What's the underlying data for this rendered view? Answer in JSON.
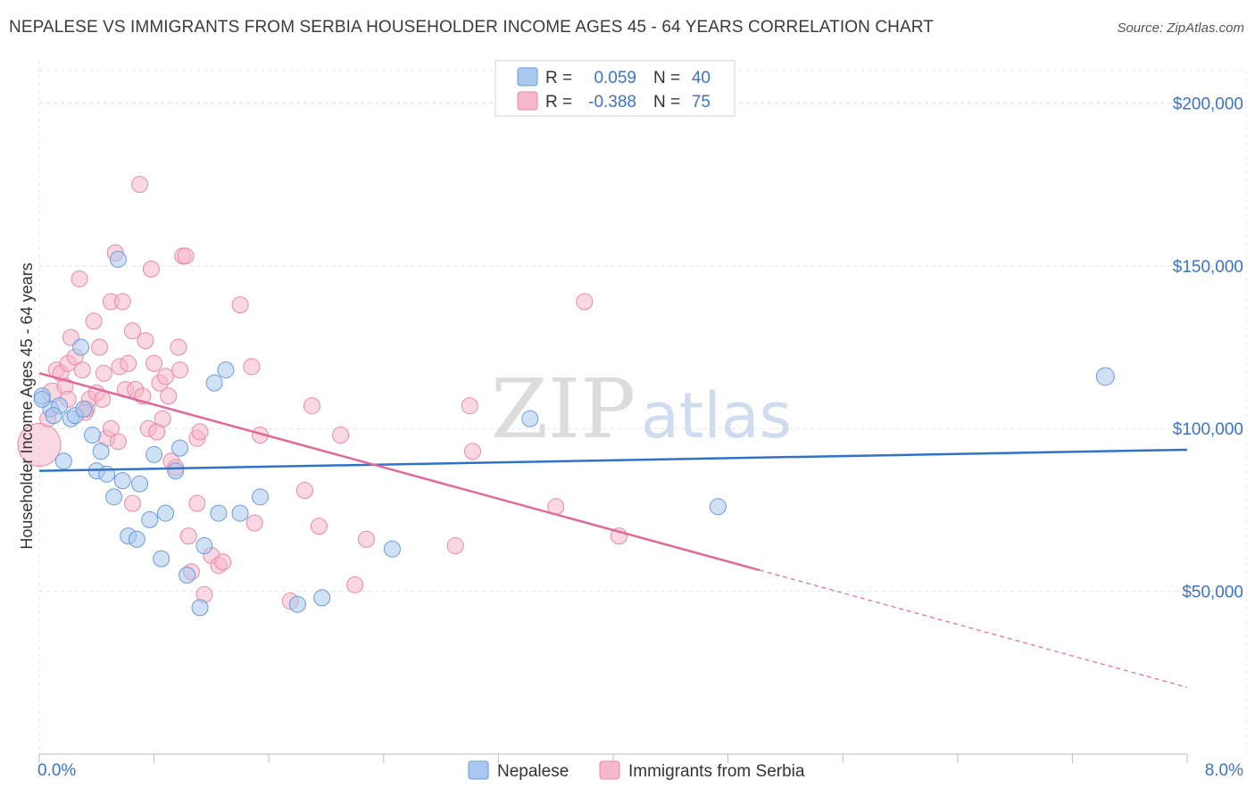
{
  "title": "NEPALESE VS IMMIGRANTS FROM SERBIA HOUSEHOLDER INCOME AGES 45 - 64 YEARS CORRELATION CHART",
  "source": "Source: ZipAtlas.com",
  "watermark": {
    "zip": "ZIP",
    "atlas": "atlas"
  },
  "colors": {
    "nepalese_fill": "#a9c8ef",
    "nepalese_stroke": "#6b9bd8",
    "nepalese_line": "#2f73c9",
    "serbia_fill": "#f5b8cb",
    "serbia_stroke": "#e88aa8",
    "serbia_line": "#e0699a",
    "axis_text": "#3b73c7",
    "grid": "#e2e2e2"
  },
  "legend": {
    "rows": [
      {
        "r_label": "R =",
        "r_value": "0.059",
        "n_label": "N =",
        "n_value": "40"
      },
      {
        "r_label": "R =",
        "r_value": "-0.388",
        "n_label": "N =",
        "n_value": "75"
      }
    ]
  },
  "chart_data": {
    "type": "scatter",
    "title": "NEPALESE VS IMMIGRANTS FROM SERBIA HOUSEHOLDER INCOME AGES 45 - 64 YEARS CORRELATION CHART",
    "xlabel": "",
    "ylabel": "Householder Income Ages 45 - 64 years",
    "xlim": [
      0,
      8
    ],
    "ylim": [
      0,
      210000
    ],
    "x_tick_labels": [
      "0.0%",
      "8.0%"
    ],
    "y_ticks": [
      50000,
      100000,
      150000,
      200000
    ],
    "y_tick_labels": [
      "$50,000",
      "$100,000",
      "$150,000",
      "$200,000"
    ],
    "grid": true,
    "legend_position": "top-center",
    "series": [
      {
        "name": "Nepalese",
        "r": 0.059,
        "n": 40,
        "trend": {
          "x0": 0,
          "y0": 87000,
          "x1": 8,
          "y1": 93500
        },
        "points": [
          {
            "x": 0.02,
            "y": 110000,
            "s": 9
          },
          {
            "x": 0.08,
            "y": 106000,
            "s": 9
          },
          {
            "x": 0.14,
            "y": 107000,
            "s": 9
          },
          {
            "x": 0.17,
            "y": 90000,
            "s": 9
          },
          {
            "x": 0.22,
            "y": 103000,
            "s": 9
          },
          {
            "x": 0.25,
            "y": 104000,
            "s": 9
          },
          {
            "x": 0.29,
            "y": 125000,
            "s": 9
          },
          {
            "x": 0.31,
            "y": 106000,
            "s": 9
          },
          {
            "x": 0.37,
            "y": 98000,
            "s": 9
          },
          {
            "x": 0.4,
            "y": 87000,
            "s": 9
          },
          {
            "x": 0.43,
            "y": 93000,
            "s": 9
          },
          {
            "x": 0.47,
            "y": 86000,
            "s": 9
          },
          {
            "x": 0.52,
            "y": 79000,
            "s": 9
          },
          {
            "x": 0.55,
            "y": 152000,
            "s": 9
          },
          {
            "x": 0.58,
            "y": 84000,
            "s": 9
          },
          {
            "x": 0.62,
            "y": 67000,
            "s": 9
          },
          {
            "x": 0.68,
            "y": 66000,
            "s": 9
          },
          {
            "x": 0.7,
            "y": 83000,
            "s": 9
          },
          {
            "x": 0.77,
            "y": 72000,
            "s": 9
          },
          {
            "x": 0.8,
            "y": 92000,
            "s": 9
          },
          {
            "x": 0.85,
            "y": 60000,
            "s": 9
          },
          {
            "x": 0.88,
            "y": 74000,
            "s": 9
          },
          {
            "x": 0.95,
            "y": 87000,
            "s": 9
          },
          {
            "x": 0.98,
            "y": 94000,
            "s": 9
          },
          {
            "x": 1.03,
            "y": 55000,
            "s": 9
          },
          {
            "x": 1.12,
            "y": 45000,
            "s": 9
          },
          {
            "x": 1.15,
            "y": 64000,
            "s": 9
          },
          {
            "x": 1.22,
            "y": 114000,
            "s": 9
          },
          {
            "x": 1.25,
            "y": 74000,
            "s": 9
          },
          {
            "x": 1.3,
            "y": 118000,
            "s": 9
          },
          {
            "x": 1.4,
            "y": 74000,
            "s": 9
          },
          {
            "x": 1.54,
            "y": 79000,
            "s": 9
          },
          {
            "x": 1.8,
            "y": 46000,
            "s": 9
          },
          {
            "x": 1.97,
            "y": 48000,
            "s": 9
          },
          {
            "x": 2.46,
            "y": 63000,
            "s": 9
          },
          {
            "x": 3.42,
            "y": 103000,
            "s": 9
          },
          {
            "x": 4.73,
            "y": 76000,
            "s": 9
          },
          {
            "x": 7.43,
            "y": 116000,
            "s": 10
          },
          {
            "x": 0.02,
            "y": 109000,
            "s": 9
          },
          {
            "x": 0.1,
            "y": 104000,
            "s": 9
          }
        ]
      },
      {
        "name": "Immigrants from Serbia",
        "r": -0.388,
        "n": 75,
        "trend": {
          "x0": 0,
          "y0": 117000,
          "x1": 5.02,
          "y1": 56500
        },
        "trend_dashed": {
          "x0": 5.02,
          "y0": 56500,
          "x1": 8,
          "y1": 20500
        },
        "points": [
          {
            "x": 0.0,
            "y": 95000,
            "s": 24
          },
          {
            "x": 0.06,
            "y": 103000,
            "s": 9
          },
          {
            "x": 0.09,
            "y": 111000,
            "s": 11
          },
          {
            "x": 0.12,
            "y": 118000,
            "s": 9
          },
          {
            "x": 0.15,
            "y": 117000,
            "s": 9
          },
          {
            "x": 0.18,
            "y": 113000,
            "s": 9
          },
          {
            "x": 0.2,
            "y": 109000,
            "s": 9
          },
          {
            "x": 0.2,
            "y": 120000,
            "s": 9
          },
          {
            "x": 0.22,
            "y": 128000,
            "s": 9
          },
          {
            "x": 0.25,
            "y": 122000,
            "s": 9
          },
          {
            "x": 0.28,
            "y": 146000,
            "s": 9
          },
          {
            "x": 0.3,
            "y": 118000,
            "s": 9
          },
          {
            "x": 0.33,
            "y": 106000,
            "s": 9
          },
          {
            "x": 0.35,
            "y": 109000,
            "s": 9
          },
          {
            "x": 0.38,
            "y": 133000,
            "s": 9
          },
          {
            "x": 0.4,
            "y": 111000,
            "s": 9
          },
          {
            "x": 0.42,
            "y": 125000,
            "s": 9
          },
          {
            "x": 0.45,
            "y": 117000,
            "s": 9
          },
          {
            "x": 0.47,
            "y": 97000,
            "s": 9
          },
          {
            "x": 0.5,
            "y": 100000,
            "s": 9
          },
          {
            "x": 0.5,
            "y": 139000,
            "s": 9
          },
          {
            "x": 0.53,
            "y": 154000,
            "s": 9
          },
          {
            "x": 0.55,
            "y": 96000,
            "s": 9
          },
          {
            "x": 0.56,
            "y": 119000,
            "s": 9
          },
          {
            "x": 0.58,
            "y": 139000,
            "s": 9
          },
          {
            "x": 0.6,
            "y": 112000,
            "s": 9
          },
          {
            "x": 0.62,
            "y": 120000,
            "s": 9
          },
          {
            "x": 0.65,
            "y": 130000,
            "s": 9
          },
          {
            "x": 0.65,
            "y": 77000,
            "s": 9
          },
          {
            "x": 0.67,
            "y": 112000,
            "s": 9
          },
          {
            "x": 0.7,
            "y": 175000,
            "s": 9
          },
          {
            "x": 0.72,
            "y": 110000,
            "s": 9
          },
          {
            "x": 0.74,
            "y": 127000,
            "s": 9
          },
          {
            "x": 0.76,
            "y": 100000,
            "s": 9
          },
          {
            "x": 0.78,
            "y": 149000,
            "s": 9
          },
          {
            "x": 0.8,
            "y": 120000,
            "s": 9
          },
          {
            "x": 0.82,
            "y": 99000,
            "s": 9
          },
          {
            "x": 0.84,
            "y": 114000,
            "s": 9
          },
          {
            "x": 0.86,
            "y": 103000,
            "s": 9
          },
          {
            "x": 0.88,
            "y": 116000,
            "s": 9
          },
          {
            "x": 0.9,
            "y": 110000,
            "s": 9
          },
          {
            "x": 0.92,
            "y": 90000,
            "s": 9
          },
          {
            "x": 0.95,
            "y": 88000,
            "s": 9
          },
          {
            "x": 0.97,
            "y": 125000,
            "s": 9
          },
          {
            "x": 0.98,
            "y": 118000,
            "s": 9
          },
          {
            "x": 1.0,
            "y": 153000,
            "s": 9
          },
          {
            "x": 1.02,
            "y": 153000,
            "s": 9
          },
          {
            "x": 1.04,
            "y": 67000,
            "s": 9
          },
          {
            "x": 1.06,
            "y": 56000,
            "s": 9
          },
          {
            "x": 1.1,
            "y": 97000,
            "s": 9
          },
          {
            "x": 1.12,
            "y": 99000,
            "s": 9
          },
          {
            "x": 1.15,
            "y": 49000,
            "s": 9
          },
          {
            "x": 1.2,
            "y": 61000,
            "s": 9
          },
          {
            "x": 1.25,
            "y": 58000,
            "s": 9
          },
          {
            "x": 1.28,
            "y": 59000,
            "s": 9
          },
          {
            "x": 1.1,
            "y": 77000,
            "s": 9
          },
          {
            "x": 1.4,
            "y": 138000,
            "s": 9
          },
          {
            "x": 1.48,
            "y": 119000,
            "s": 9
          },
          {
            "x": 1.5,
            "y": 71000,
            "s": 9
          },
          {
            "x": 1.54,
            "y": 98000,
            "s": 9
          },
          {
            "x": 1.75,
            "y": 47000,
            "s": 9
          },
          {
            "x": 1.85,
            "y": 81000,
            "s": 9
          },
          {
            "x": 1.9,
            "y": 107000,
            "s": 9
          },
          {
            "x": 1.95,
            "y": 70000,
            "s": 9
          },
          {
            "x": 2.1,
            "y": 98000,
            "s": 9
          },
          {
            "x": 2.2,
            "y": 52000,
            "s": 9
          },
          {
            "x": 2.28,
            "y": 66000,
            "s": 9
          },
          {
            "x": 2.9,
            "y": 64000,
            "s": 9
          },
          {
            "x": 3.0,
            "y": 107000,
            "s": 9
          },
          {
            "x": 3.02,
            "y": 93000,
            "s": 9
          },
          {
            "x": 3.6,
            "y": 76000,
            "s": 9
          },
          {
            "x": 3.8,
            "y": 139000,
            "s": 9
          },
          {
            "x": 4.04,
            "y": 67000,
            "s": 9
          },
          {
            "x": 0.32,
            "y": 105000,
            "s": 9
          },
          {
            "x": 0.44,
            "y": 109000,
            "s": 9
          }
        ]
      }
    ]
  }
}
